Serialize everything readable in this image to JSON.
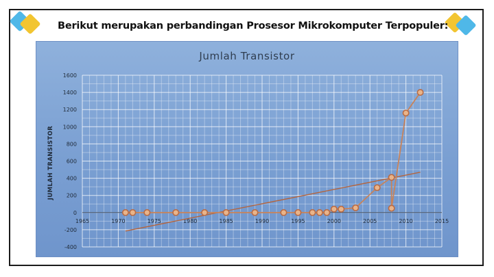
{
  "heading": "Berikut merupakan perbandingan Prosesor Mikrokomputer Terpopuler:",
  "colors": {
    "frame": "#1a1a1a",
    "panel_background": "#7a9fd2",
    "series_line": "#c8835a",
    "marker_fill": "#e9b48a",
    "marker_stroke": "#b86b45",
    "trendline": "#b5643c",
    "deco_blue": "#4fb8e8",
    "deco_gold": "#f2c531"
  },
  "chart_data": {
    "type": "line",
    "title": "Jumlah Transistor",
    "xlabel": "",
    "ylabel": "JUMLAH TRANSISTOR",
    "xlim": [
      1965,
      2015
    ],
    "ylim": [
      -400,
      1600
    ],
    "x_ticks": [
      "1965",
      "1970",
      "1975",
      "1980",
      "1985",
      "1990",
      "1995",
      "2000",
      "2005",
      "2010",
      "2015"
    ],
    "y_ticks": [
      "1600",
      "1400",
      "1200",
      "1000",
      "800",
      "600",
      "400",
      "200",
      "0",
      "-200",
      "-400"
    ],
    "grid": "major and minor",
    "legend": "none",
    "series": [
      {
        "x": [
          1971,
          1972,
          1974,
          1978,
          1982,
          1985,
          1989,
          1993,
          1995,
          1997,
          1998,
          1999,
          2000,
          2001,
          2003,
          2006,
          2008,
          2008,
          2010,
          2012
        ],
        "y": [
          0,
          0,
          0,
          0,
          0,
          0,
          0,
          0,
          0,
          0,
          0,
          0,
          40,
          40,
          55,
          290,
          410,
          50,
          1160,
          1400
        ]
      }
    ],
    "trendline": {
      "x": [
        1971,
        2012
      ],
      "y": [
        -215,
        470
      ]
    }
  }
}
